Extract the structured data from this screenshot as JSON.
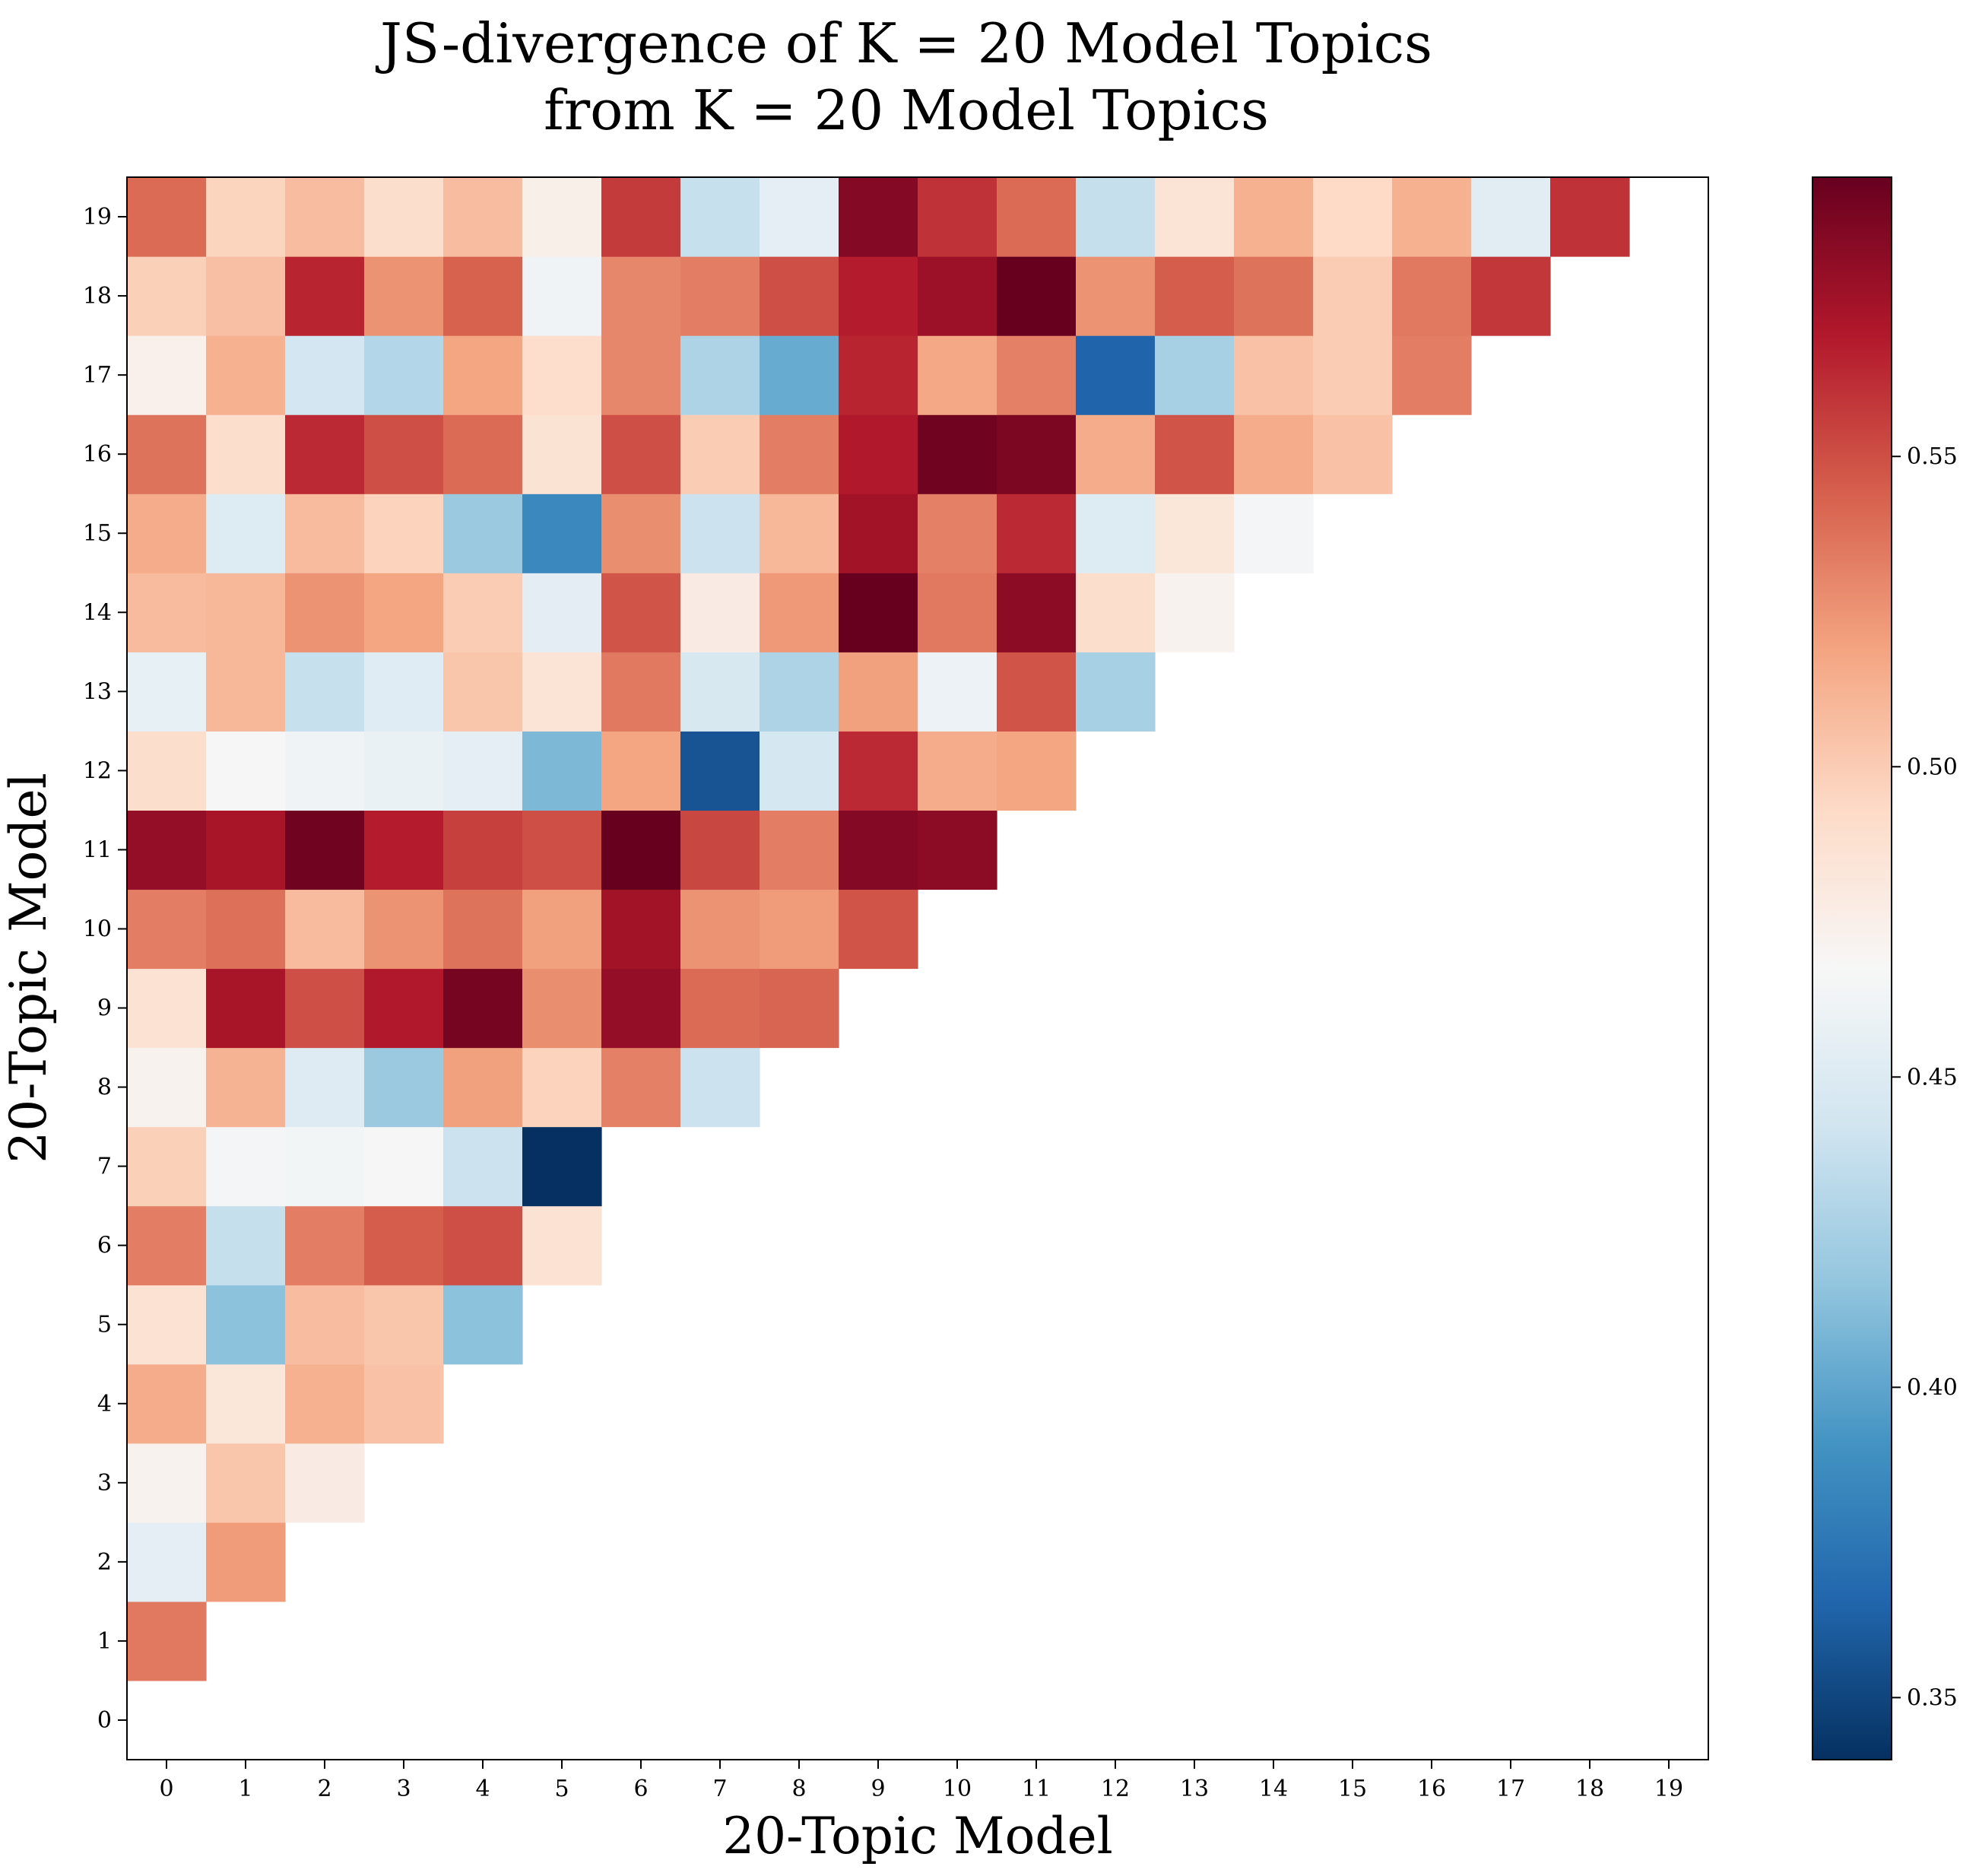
{
  "chart_data": {
    "type": "heatmap",
    "title": [
      "JS-divergence of K = 20 Model Topics",
      "from K = 20 Model Topics"
    ],
    "xlabel": "20-Topic Model",
    "ylabel": "20-Topic Model",
    "x_ticks": [
      "0",
      "1",
      "2",
      "3",
      "4",
      "5",
      "6",
      "7",
      "8",
      "9",
      "10",
      "11",
      "12",
      "13",
      "14",
      "15",
      "16",
      "17",
      "18",
      "19"
    ],
    "y_ticks": [
      "0",
      "1",
      "2",
      "3",
      "4",
      "5",
      "6",
      "7",
      "8",
      "9",
      "10",
      "11",
      "12",
      "13",
      "14",
      "15",
      "16",
      "17",
      "18",
      "19"
    ],
    "colormap": "RdBu_r",
    "vmin": 0.34,
    "vmax": 0.595,
    "colorbar_ticks": [
      "0.35",
      "0.40",
      "0.45",
      "0.50",
      "0.55"
    ],
    "colorbar_tick_values": [
      0.35,
      0.4,
      0.45,
      0.5,
      0.55
    ],
    "note_rows": "rows[i] holds values for y = i, columns x = 0..i-1 (lower triangle, diagonal and above empty)",
    "rows": [
      [],
      [
        0.535
      ],
      [
        0.455,
        0.522
      ],
      [
        0.472,
        0.503,
        0.478
      ],
      [
        0.515,
        0.483,
        0.513,
        0.505
      ],
      [
        0.487,
        0.415,
        0.507,
        0.503,
        0.415
      ],
      [
        0.533,
        0.437,
        0.533,
        0.545,
        0.55,
        0.487
      ],
      [
        0.498,
        0.465,
        0.464,
        0.468,
        0.44,
        0.34
      ],
      [
        0.472,
        0.512,
        0.451,
        0.42,
        0.52,
        0.497,
        0.532,
        0.44
      ],
      [
        0.487,
        0.573,
        0.55,
        0.57,
        0.59,
        0.527,
        0.58,
        0.54,
        0.542
      ],
      [
        0.533,
        0.538,
        0.508,
        0.525,
        0.537,
        0.52,
        0.575,
        0.525,
        0.522,
        0.548
      ],
      [
        0.58,
        0.573,
        0.592,
        0.568,
        0.555,
        0.55,
        0.595,
        0.553,
        0.533,
        0.585,
        0.582
      ],
      [
        0.49,
        0.468,
        0.462,
        0.459,
        0.455,
        0.41,
        0.518,
        0.357,
        0.445,
        0.563,
        0.515,
        0.518
      ],
      [
        0.457,
        0.51,
        0.438,
        0.452,
        0.503,
        0.485,
        0.535,
        0.446,
        0.428,
        0.52,
        0.46,
        0.548,
        0.425
      ],
      [
        0.508,
        0.51,
        0.525,
        0.518,
        0.5,
        0.454,
        0.548,
        0.478,
        0.523,
        0.6,
        0.535,
        0.582,
        0.49,
        0.472
      ],
      [
        0.515,
        0.45,
        0.508,
        0.497,
        0.42,
        0.385,
        0.527,
        0.44,
        0.51,
        0.575,
        0.532,
        0.563,
        0.45,
        0.483,
        0.465
      ],
      [
        0.537,
        0.49,
        0.563,
        0.55,
        0.54,
        0.486,
        0.55,
        0.5,
        0.533,
        0.57,
        0.592,
        0.588,
        0.515,
        0.548,
        0.515,
        0.505
      ],
      [
        0.474,
        0.513,
        0.444,
        0.43,
        0.518,
        0.491,
        0.53,
        0.428,
        0.403,
        0.565,
        0.517,
        0.532,
        0.365,
        0.425,
        0.505,
        0.5,
        0.533
      ],
      [
        0.498,
        0.506,
        0.565,
        0.525,
        0.543,
        0.462,
        0.53,
        0.533,
        0.55,
        0.568,
        0.577,
        0.6,
        0.525,
        0.545,
        0.537,
        0.5,
        0.535,
        0.558
      ],
      [
        0.54,
        0.496,
        0.507,
        0.49,
        0.507,
        0.475,
        0.557,
        0.438,
        0.455,
        0.585,
        0.56,
        0.54,
        0.437,
        0.485,
        0.513,
        0.493,
        0.513,
        0.453,
        0.56
      ]
    ]
  }
}
